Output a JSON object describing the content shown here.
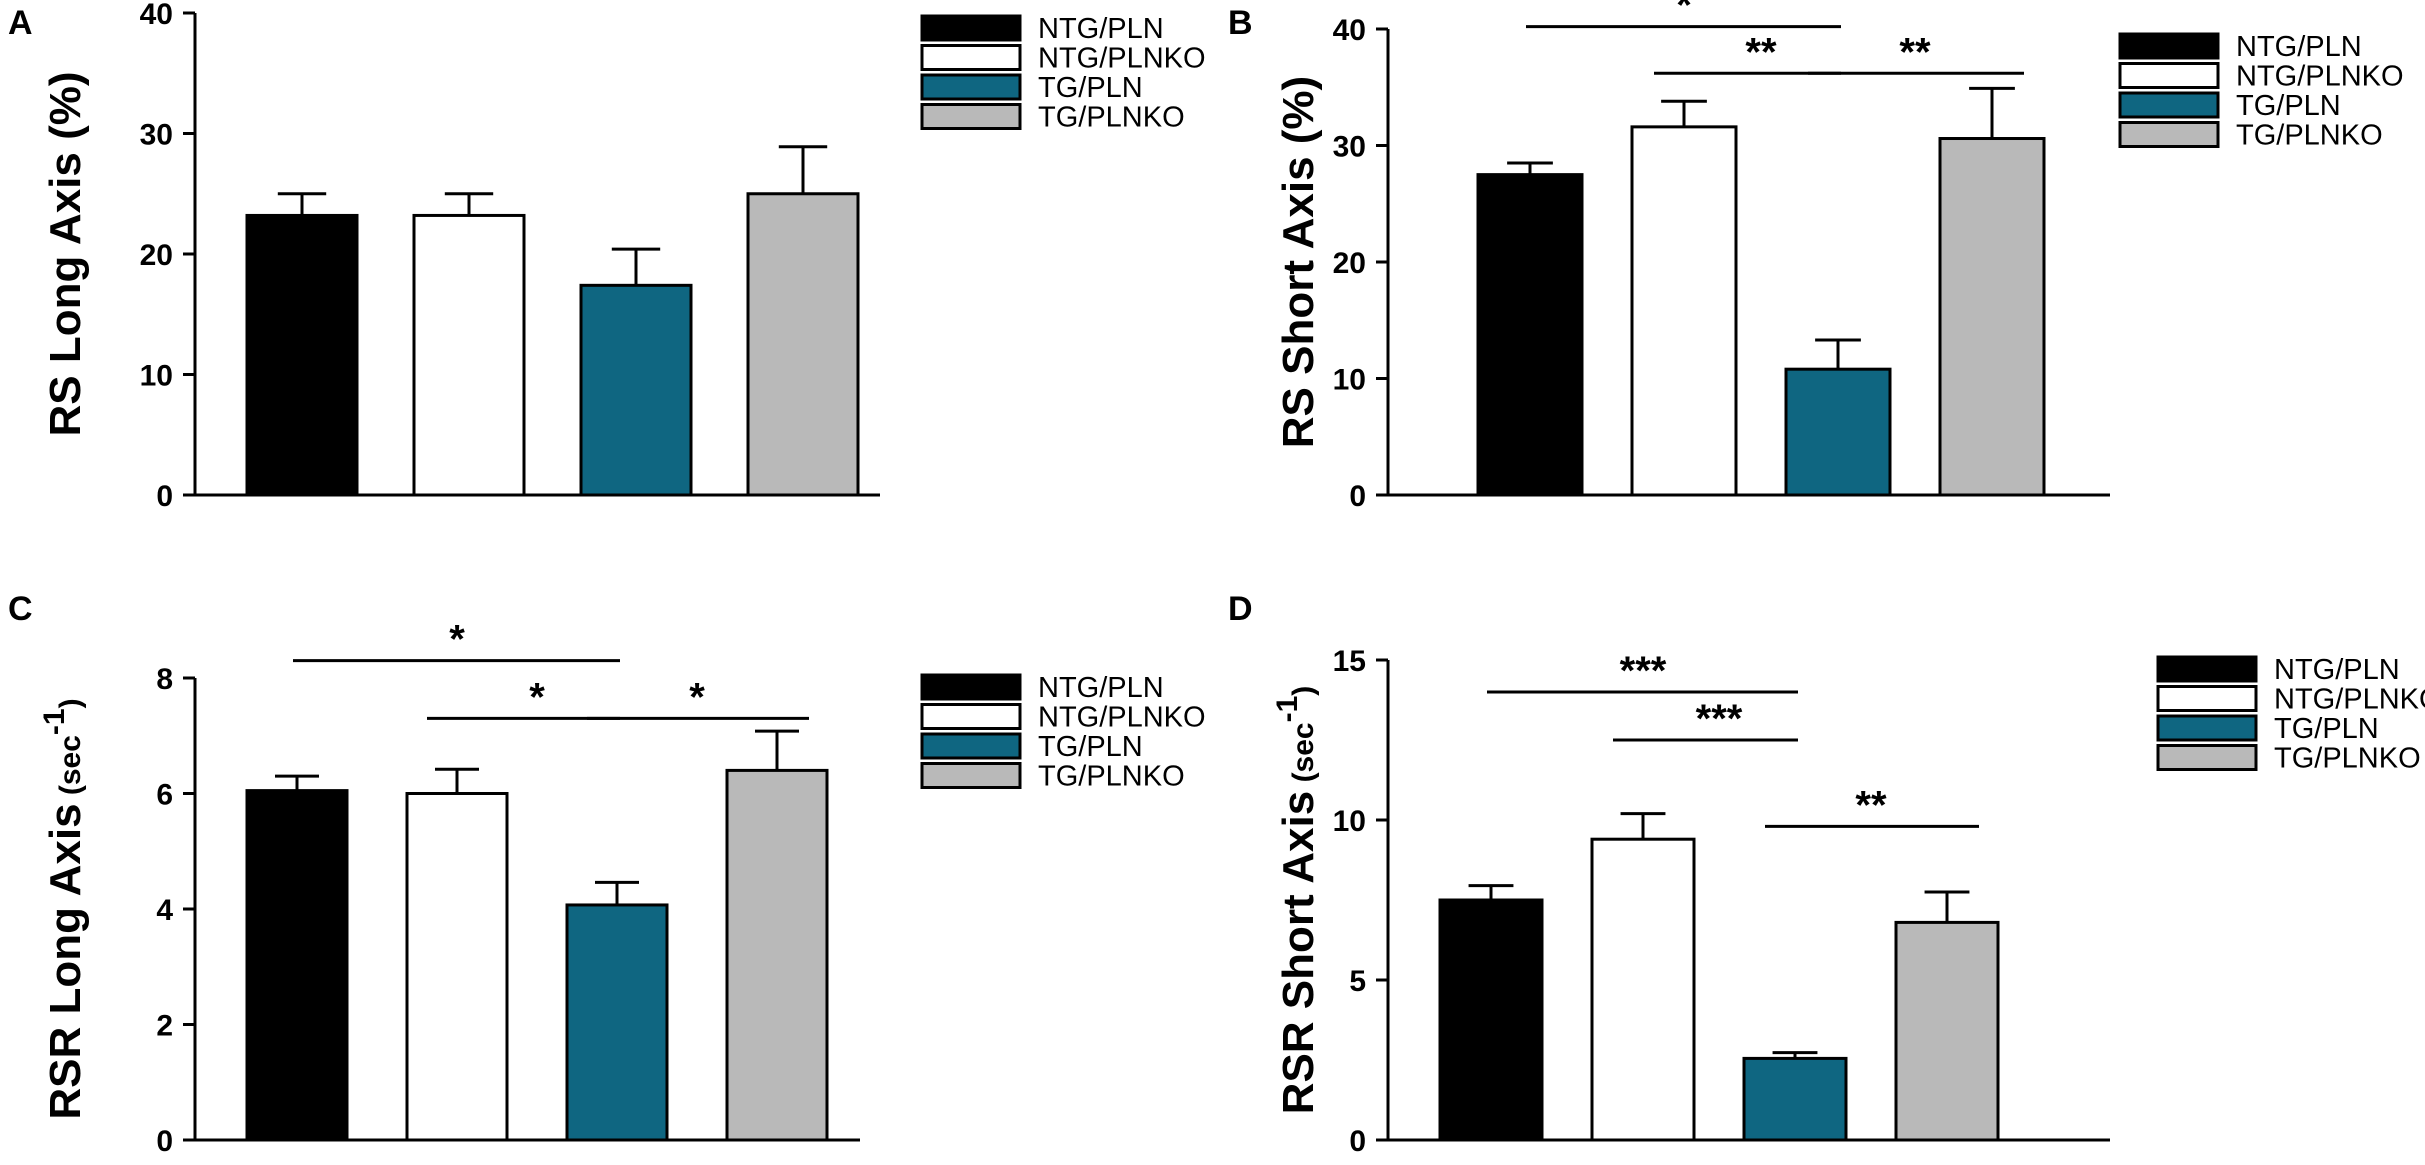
{
  "groups": [
    "NTG/PLN",
    "NTG/PLNKO",
    "TG/PLN",
    "TG/PLNKO"
  ],
  "colors": {
    "NTG/PLN": "#000000",
    "NTG/PLNKO": "#ffffff",
    "TG/PLN": "#0f6681",
    "TG/PLNKO": "#b9b9b9"
  },
  "chart_data": [
    {
      "panel": "A",
      "type": "bar",
      "ylabel": "RS Long Axis (%)",
      "ylim": [
        0,
        40
      ],
      "yticks": [
        0,
        10,
        20,
        30,
        40
      ],
      "categories": [
        "NTG/PLN",
        "NTG/PLNKO",
        "TG/PLN",
        "TG/PLNKO"
      ],
      "values": [
        23.2,
        23.2,
        17.4,
        25.0
      ],
      "errors": [
        1.8,
        1.8,
        3.0,
        3.9
      ],
      "legend_position": "top-right",
      "significance": []
    },
    {
      "panel": "B",
      "type": "bar",
      "ylabel": "RS Short Axis (%)",
      "ylim": [
        0,
        40
      ],
      "yticks": [
        0,
        10,
        20,
        30,
        40
      ],
      "categories": [
        "NTG/PLN",
        "NTG/PLNKO",
        "TG/PLN",
        "TG/PLNKO"
      ],
      "values": [
        27.5,
        31.6,
        10.8,
        30.6
      ],
      "errors": [
        1.0,
        2.2,
        2.5,
        4.3
      ],
      "legend_position": "top-right",
      "significance": [
        {
          "from": 0,
          "to": 2,
          "label": "*",
          "y": 40.2
        },
        {
          "from": 1,
          "to": 2,
          "label": "**",
          "y": 36.2
        },
        {
          "from": 2,
          "to": 3,
          "label": "**",
          "y": 36.2
        }
      ]
    },
    {
      "panel": "C",
      "type": "bar",
      "ylabel": "RSR Long Axis",
      "ylabel_unit": "sec",
      "ylabel_sup": "-1",
      "ylim": [
        0,
        8
      ],
      "yticks": [
        0,
        2,
        4,
        6,
        8
      ],
      "categories": [
        "NTG/PLN",
        "NTG/PLNKO",
        "TG/PLN",
        "TG/PLNKO"
      ],
      "values": [
        6.05,
        6.0,
        4.07,
        6.4
      ],
      "errors": [
        0.25,
        0.42,
        0.39,
        0.68
      ],
      "legend_position": "top-right",
      "significance": [
        {
          "from": 0,
          "to": 2,
          "label": "*",
          "y": 8.3
        },
        {
          "from": 1,
          "to": 2,
          "label": "*",
          "y": 7.3
        },
        {
          "from": 2,
          "to": 3,
          "label": "*",
          "y": 7.3
        }
      ]
    },
    {
      "panel": "D",
      "type": "bar",
      "ylabel": "RSR Short Axis",
      "ylabel_unit": "sec",
      "ylabel_sup": "-1",
      "ylim": [
        0,
        15
      ],
      "yticks": [
        0,
        5,
        10,
        15
      ],
      "categories": [
        "NTG/PLN",
        "NTG/PLNKO",
        "TG/PLN",
        "TG/PLNKO"
      ],
      "values": [
        7.5,
        9.4,
        2.55,
        6.8
      ],
      "errors": [
        0.45,
        0.8,
        0.18,
        0.95
      ],
      "legend_position": "top-right",
      "significance": [
        {
          "from": 0,
          "to": 2,
          "label": "***",
          "y": 14.0
        },
        {
          "from": 1,
          "to": 2,
          "label": "***",
          "y": 12.5
        },
        {
          "from": 2,
          "to": 3,
          "label": "**",
          "y": 9.8
        }
      ]
    }
  ]
}
